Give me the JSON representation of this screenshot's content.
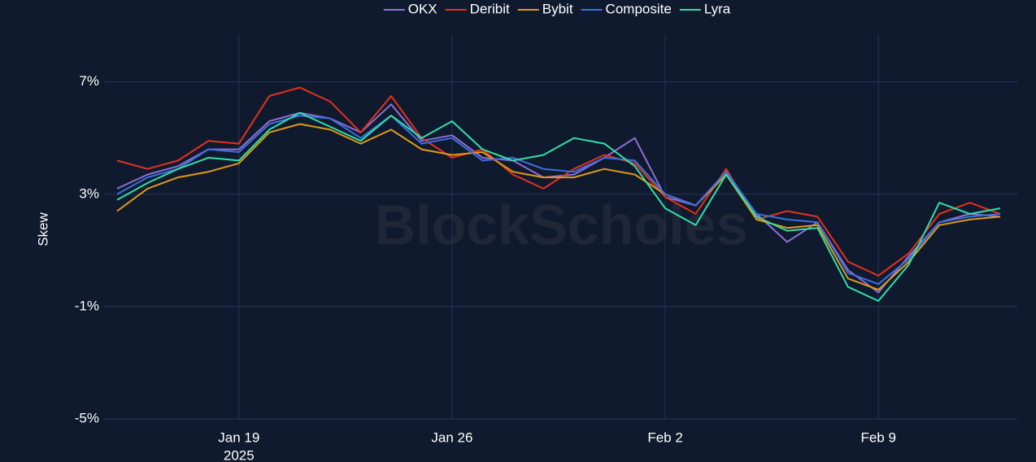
{
  "chart_data": {
    "type": "line",
    "y_label": "Skew",
    "watermark": "BlockScholes",
    "x": [
      "2025-01-15",
      "2025-01-16",
      "2025-01-17",
      "2025-01-18",
      "2025-01-19",
      "2025-01-20",
      "2025-01-21",
      "2025-01-22",
      "2025-01-23",
      "2025-01-24",
      "2025-01-25",
      "2025-01-26",
      "2025-01-27",
      "2025-01-28",
      "2025-01-29",
      "2025-01-30",
      "2025-01-31",
      "2025-02-01",
      "2025-02-02",
      "2025-02-03",
      "2025-02-04",
      "2025-02-05",
      "2025-02-06",
      "2025-02-07",
      "2025-02-08",
      "2025-02-09",
      "2025-02-10",
      "2025-02-11",
      "2025-02-12",
      "2025-02-13"
    ],
    "series": [
      {
        "name": "OKX",
        "color": "#8c6fd6",
        "values": [
          3.2,
          3.7,
          4.0,
          4.6,
          4.6,
          5.6,
          5.9,
          5.7,
          5.2,
          6.2,
          4.9,
          5.1,
          4.3,
          4.2,
          3.6,
          3.7,
          4.3,
          5.0,
          2.9,
          2.6,
          3.8,
          2.3,
          1.3,
          2.0,
          0.3,
          -0.5,
          0.8,
          2.0,
          2.3,
          2.2
        ]
      },
      {
        "name": "Deribit",
        "color": "#e3311b",
        "values": [
          4.2,
          3.9,
          4.2,
          4.9,
          4.8,
          6.5,
          6.8,
          6.3,
          5.2,
          6.5,
          5.0,
          4.3,
          4.6,
          3.7,
          3.2,
          3.9,
          4.4,
          4.1,
          2.9,
          2.3,
          3.9,
          2.1,
          2.4,
          2.2,
          0.6,
          0.1,
          0.9,
          2.3,
          2.7,
          2.3
        ]
      },
      {
        "name": "Bybit",
        "color": "#e09a14",
        "values": [
          2.4,
          3.2,
          3.6,
          3.8,
          4.1,
          5.2,
          5.5,
          5.3,
          4.8,
          5.3,
          4.6,
          4.4,
          4.5,
          3.8,
          3.6,
          3.6,
          3.9,
          3.7,
          3.0,
          2.6,
          3.7,
          2.1,
          1.8,
          1.9,
          0.0,
          -0.4,
          0.6,
          1.9,
          2.1,
          2.2
        ]
      },
      {
        "name": "Composite",
        "color": "#3a6fe0",
        "values": [
          3.0,
          3.6,
          3.9,
          4.6,
          4.5,
          5.5,
          5.8,
          5.7,
          5.0,
          5.8,
          4.8,
          5.0,
          4.2,
          4.3,
          3.9,
          3.8,
          4.3,
          4.2,
          3.0,
          2.6,
          3.8,
          2.3,
          2.1,
          2.0,
          0.2,
          -0.2,
          0.7,
          2.0,
          2.2,
          2.3
        ]
      },
      {
        "name": "Lyra",
        "color": "#2ee0a8",
        "values": [
          2.8,
          3.4,
          3.9,
          4.3,
          4.2,
          5.3,
          5.9,
          5.4,
          4.9,
          5.8,
          5.0,
          5.6,
          4.6,
          4.2,
          4.4,
          5.0,
          4.8,
          4.0,
          2.5,
          1.9,
          3.7,
          2.2,
          1.7,
          1.8,
          -0.3,
          -0.8,
          0.5,
          2.7,
          2.3,
          2.5
        ]
      }
    ],
    "xlim": [
      "2025-01-15",
      "2025-02-13"
    ],
    "xticks": [
      "2025-01-19",
      "2025-01-26",
      "2025-02-02",
      "2025-02-09"
    ],
    "xtick_labels": [
      "Jan 19",
      "Jan 26",
      "Feb 2",
      "Feb 9"
    ],
    "year_label": "2025",
    "ylim": [
      -5,
      8.7
    ],
    "yticks": [
      {
        "value": -5,
        "label": "-5%"
      },
      {
        "value": -1,
        "label": "-1%"
      },
      {
        "value": 3,
        "label": "3%"
      },
      {
        "value": 7,
        "label": "7%"
      }
    ],
    "grid": true,
    "legend": "top"
  }
}
